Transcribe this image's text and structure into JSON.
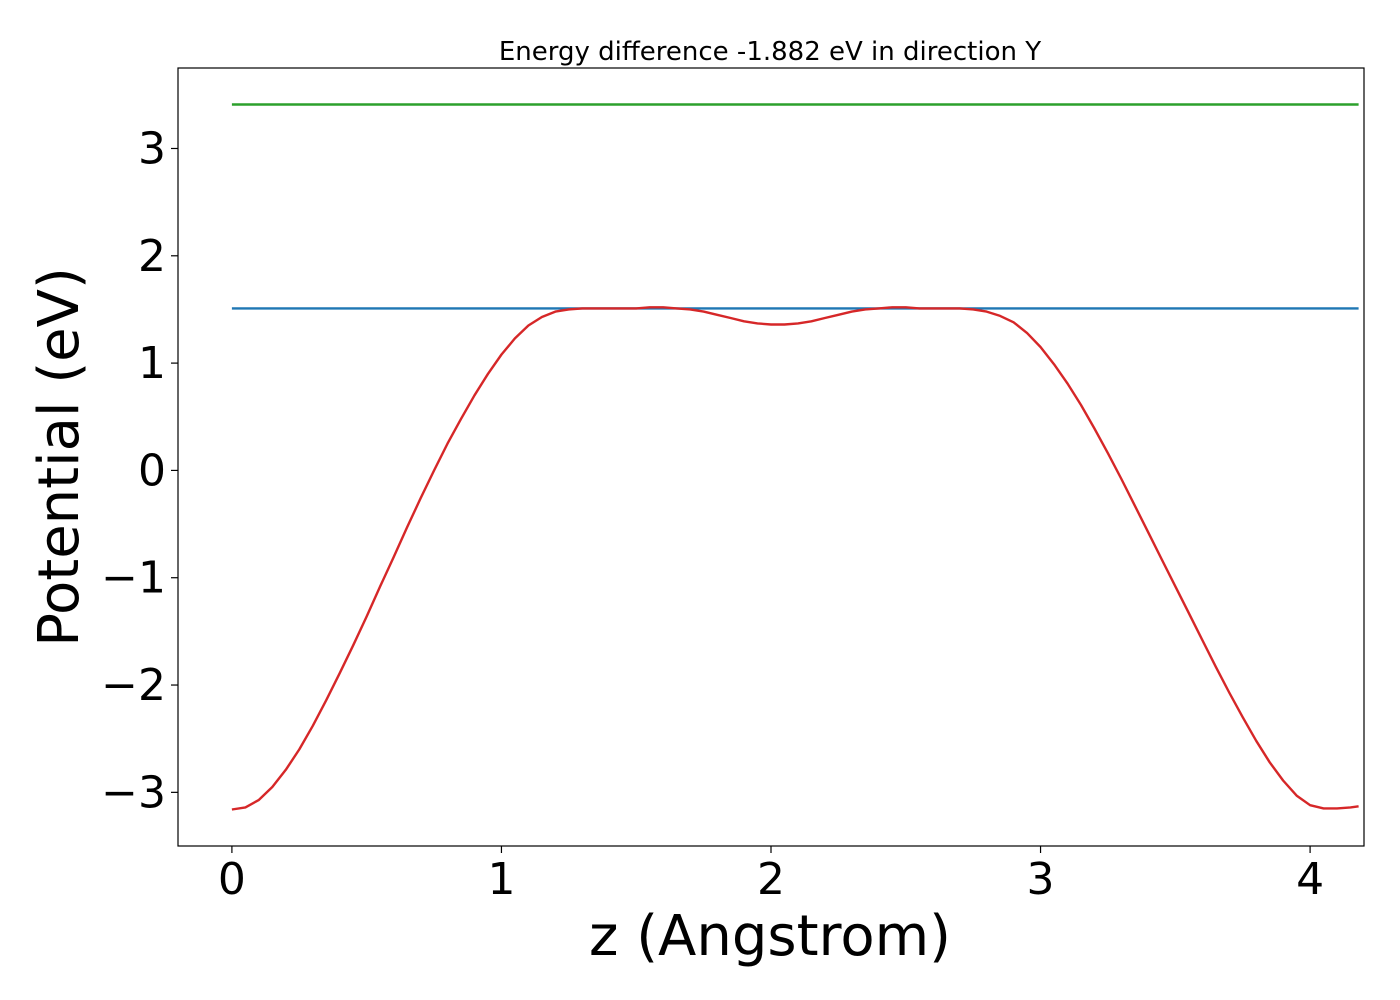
{
  "chart_data": {
    "type": "line",
    "title": "Energy difference -1.882 eV in direction Y",
    "xlabel": "z (Angstrom)",
    "ylabel": "Potential (eV)",
    "xlim": [
      -0.2,
      4.2
    ],
    "ylim": [
      -3.5,
      3.75
    ],
    "xticks": [
      0,
      1,
      2,
      3,
      4
    ],
    "xtick_labels": [
      "0",
      "1",
      "2",
      "3",
      "4"
    ],
    "yticks": [
      -3,
      -2,
      -1,
      0,
      1,
      2,
      3
    ],
    "ytick_labels": [
      "−3",
      "−2",
      "−1",
      "0",
      "1",
      "2",
      "3"
    ],
    "grid": false,
    "series": [
      {
        "color": "#2ca02c",
        "x": [
          0.0,
          4.18
        ],
        "y": [
          3.41,
          3.41
        ]
      },
      {
        "color": "#1f77b4",
        "x": [
          0.0,
          4.18
        ],
        "y": [
          1.51,
          1.51
        ]
      },
      {
        "color": "#d62728",
        "x": [
          0.0,
          0.05,
          0.1,
          0.15,
          0.2,
          0.25,
          0.3,
          0.35,
          0.4,
          0.45,
          0.5,
          0.55,
          0.6,
          0.65,
          0.7,
          0.75,
          0.8,
          0.85,
          0.9,
          0.95,
          1.0,
          1.05,
          1.1,
          1.15,
          1.2,
          1.25,
          1.3,
          1.35,
          1.4,
          1.45,
          1.5,
          1.55,
          1.6,
          1.65,
          1.7,
          1.75,
          1.8,
          1.85,
          1.9,
          1.95,
          2.0,
          2.05,
          2.1,
          2.15,
          2.2,
          2.25,
          2.3,
          2.35,
          2.4,
          2.45,
          2.5,
          2.55,
          2.6,
          2.65,
          2.7,
          2.75,
          2.8,
          2.85,
          2.9,
          2.95,
          3.0,
          3.05,
          3.1,
          3.15,
          3.2,
          3.25,
          3.3,
          3.35,
          3.4,
          3.45,
          3.5,
          3.55,
          3.6,
          3.65,
          3.7,
          3.75,
          3.8,
          3.85,
          3.9,
          3.95,
          4.0,
          4.05,
          4.1,
          4.15,
          4.18
        ],
        "y": [
          -3.16,
          -3.14,
          -3.07,
          -2.95,
          -2.79,
          -2.6,
          -2.38,
          -2.14,
          -1.89,
          -1.63,
          -1.36,
          -1.08,
          -0.81,
          -0.53,
          -0.26,
          0.0,
          0.25,
          0.48,
          0.7,
          0.9,
          1.08,
          1.23,
          1.35,
          1.43,
          1.48,
          1.5,
          1.51,
          1.51,
          1.51,
          1.51,
          1.51,
          1.52,
          1.52,
          1.51,
          1.5,
          1.48,
          1.45,
          1.42,
          1.39,
          1.37,
          1.36,
          1.36,
          1.37,
          1.39,
          1.42,
          1.45,
          1.48,
          1.5,
          1.51,
          1.52,
          1.52,
          1.51,
          1.51,
          1.51,
          1.51,
          1.5,
          1.48,
          1.44,
          1.38,
          1.28,
          1.15,
          0.99,
          0.81,
          0.61,
          0.39,
          0.16,
          -0.08,
          -0.33,
          -0.58,
          -0.83,
          -1.08,
          -1.33,
          -1.58,
          -1.83,
          -2.07,
          -2.3,
          -2.52,
          -2.72,
          -2.89,
          -3.03,
          -3.12,
          -3.15,
          -3.15,
          -3.14,
          -3.13
        ]
      }
    ]
  }
}
